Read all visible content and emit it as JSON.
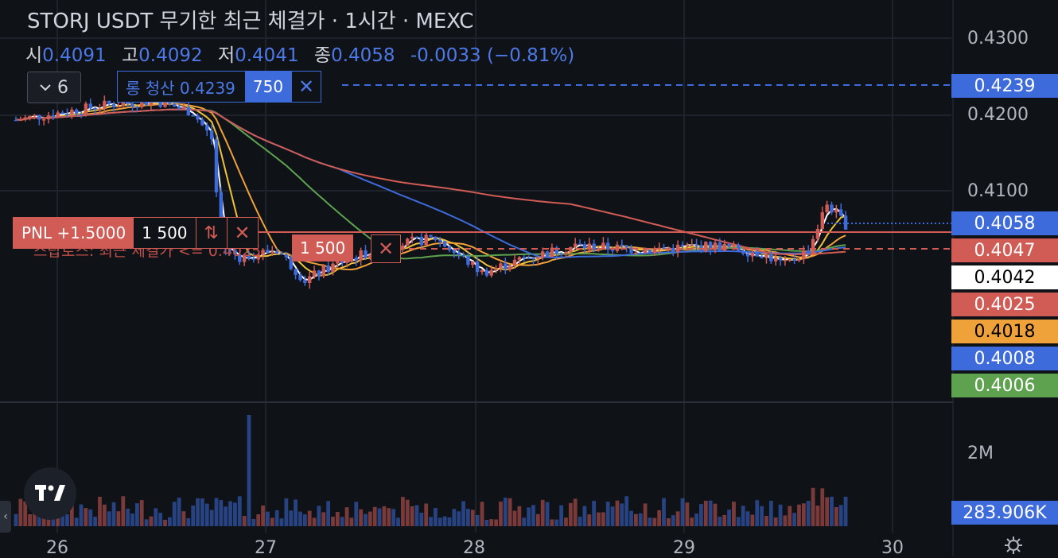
{
  "title": "STORJ USDT 무기한 최근 체결가 · 1시간 · MEXC",
  "ohlc": {
    "open_label": "시",
    "open": "0.4091",
    "high_label": "고",
    "high": "0.4092",
    "low_label": "저",
    "low": "0.4041",
    "close_label": "종",
    "close": "0.4058",
    "change": "-0.0033 (−0.81%)"
  },
  "indicators_button": {
    "count": "6"
  },
  "liquidation_order": {
    "label": "롱 청산 0.4239",
    "qty": "750"
  },
  "position": {
    "pnl": "PNL +1.5000",
    "qty": "1 500"
  },
  "stop_order": {
    "label": "스탑로스: 최근 체결가 <= 0.4025",
    "qty": "1 500"
  },
  "price_axis": {
    "labels": [
      "0.4300",
      "0.4200",
      "0.4100"
    ],
    "tags": [
      {
        "value": "0.4239",
        "color": "#3e6bdb",
        "text_color": "#ffffff"
      },
      {
        "value": "0.4058",
        "color": "#3e6bdb",
        "text_color": "#ffffff"
      },
      {
        "value": "0.4047",
        "color": "#d15b55",
        "text_color": "#ffffff"
      },
      {
        "value": "0.4042",
        "color": "#ffffff",
        "text_color": "#000000"
      },
      {
        "value": "0.4025",
        "color": "#d15b55",
        "text_color": "#ffffff"
      },
      {
        "value": "0.4018",
        "color": "#f0a23a",
        "text_color": "#000000"
      },
      {
        "value": "0.4008",
        "color": "#3e6bdb",
        "text_color": "#ffffff"
      },
      {
        "value": "0.4006",
        "color": "#5ea24f",
        "text_color": "#ffffff"
      }
    ]
  },
  "volume_axis": {
    "label": "2M",
    "current": "283.906K"
  },
  "dates": [
    "26",
    "27",
    "28",
    "29",
    "30"
  ],
  "colors": {
    "up": "#d15b55",
    "down": "#3e6bdb",
    "background": "#0f1217"
  },
  "icons": {
    "logo": "tradingview-logo-icon",
    "settings": "gear-icon",
    "collapse": "chevron-left-icon"
  }
}
